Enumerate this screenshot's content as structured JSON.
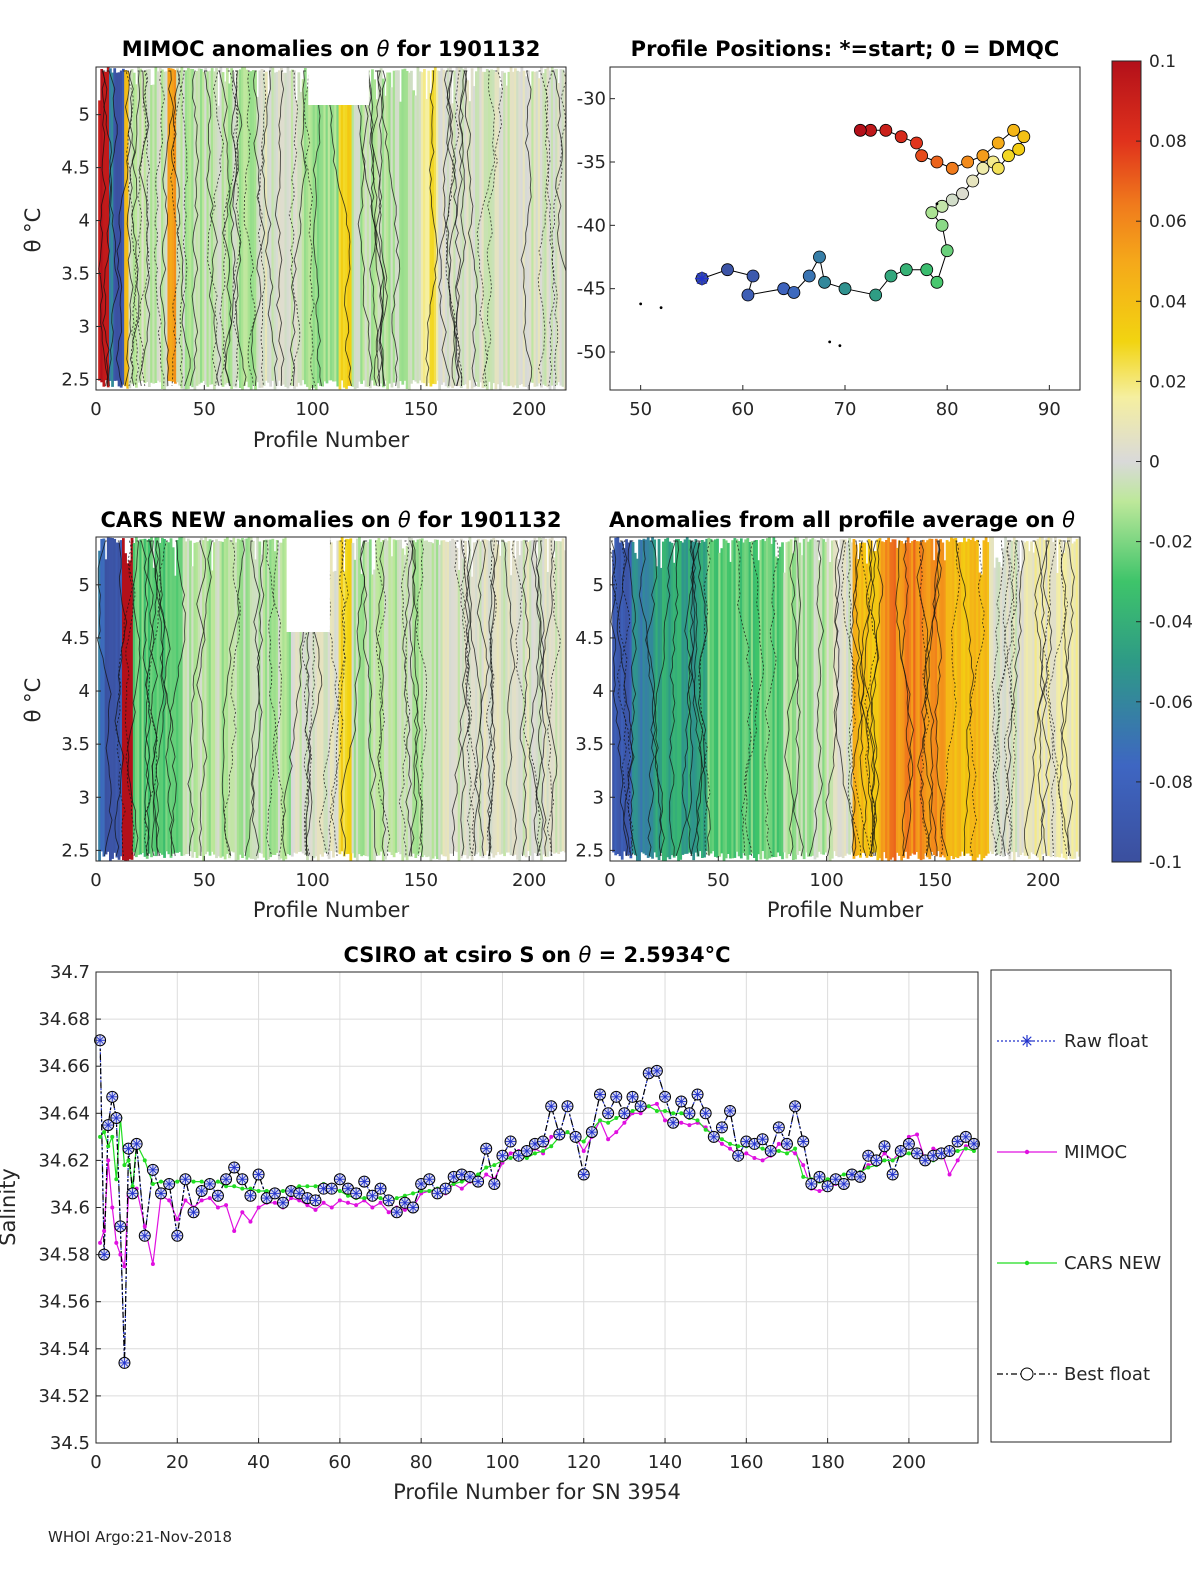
{
  "colors": {
    "raw": "#2233cc",
    "mimoc": "#e010e0",
    "cars": "#22dd22",
    "best": "#000000",
    "frame": "#262626",
    "grid": "#dcdcdc"
  },
  "chart_data": [
    {
      "type": "heatmap",
      "title_prefix": "MIMOC anomalies on ",
      "title_symbol": "θ",
      "title_suffix": "  for 1901132",
      "xlabel": "Profile Number",
      "ylabel": "θ °C",
      "xlim": [
        0,
        217
      ],
      "ylim": [
        2.4,
        5.45
      ],
      "xticks": [
        "0",
        "50",
        "100",
        "150",
        "200"
      ],
      "yticks": [
        "2.5",
        "3",
        "3.5",
        "4",
        "4.5",
        "5"
      ],
      "bands": [
        {
          "x0": 1,
          "x1": 6,
          "value": 0.1
        },
        {
          "x0": 6,
          "x1": 8,
          "value": -0.06
        },
        {
          "x0": 8,
          "x1": 13,
          "value": -0.09
        },
        {
          "x0": 13,
          "x1": 15,
          "value": 0.04
        },
        {
          "x0": 15,
          "x1": 33,
          "value": -0.005
        },
        {
          "x0": 33,
          "x1": 37,
          "value": 0.05
        },
        {
          "x0": 37,
          "x1": 75,
          "value": -0.008
        },
        {
          "x0": 75,
          "x1": 95,
          "value": 0.0
        },
        {
          "x0": 95,
          "x1": 112,
          "value": -0.015
        },
        {
          "x0": 112,
          "x1": 118,
          "value": 0.03
        },
        {
          "x0": 118,
          "x1": 150,
          "value": -0.01
        },
        {
          "x0": 150,
          "x1": 158,
          "value": 0.02
        },
        {
          "x0": 158,
          "x1": 217,
          "value": 0.0
        }
      ]
    },
    {
      "type": "scatter",
      "title": "Profile Positions: *=start; 0 = DMQC",
      "xlim": [
        47,
        93
      ],
      "ylim": [
        -53,
        -27.5
      ],
      "xticks": [
        "50",
        "60",
        "70",
        "80",
        "90"
      ],
      "yticks": [
        "-30",
        "-35",
        "-40",
        "-45",
        "-50"
      ],
      "start": [
        56,
        -44.2
      ],
      "track": [
        [
          56,
          -44.2
        ],
        [
          58.5,
          -43.5
        ],
        [
          61,
          -44
        ],
        [
          60.5,
          -45.5
        ],
        [
          64,
          -45
        ],
        [
          65,
          -45.3
        ],
        [
          66.5,
          -44
        ],
        [
          67.5,
          -42.5
        ],
        [
          68,
          -44.5
        ],
        [
          70,
          -45
        ],
        [
          73,
          -45.5
        ],
        [
          74.5,
          -44
        ],
        [
          76,
          -43.5
        ],
        [
          78,
          -43.5
        ],
        [
          79,
          -44.5
        ],
        [
          80,
          -42
        ],
        [
          79.5,
          -40
        ],
        [
          78.5,
          -39
        ],
        [
          79.5,
          -38.5
        ],
        [
          80.5,
          -38
        ],
        [
          81.5,
          -37.5
        ],
        [
          82.5,
          -36.5
        ],
        [
          83.5,
          -35.5
        ],
        [
          84.5,
          -35
        ],
        [
          85,
          -35.5
        ],
        [
          86,
          -34.5
        ],
        [
          87,
          -34
        ],
        [
          87.5,
          -33
        ],
        [
          86.5,
          -32.5
        ],
        [
          85,
          -33.5
        ],
        [
          83.5,
          -34.5
        ],
        [
          82,
          -35
        ],
        [
          80.5,
          -35.5
        ],
        [
          79,
          -35
        ],
        [
          77.5,
          -34.5
        ],
        [
          77,
          -33.5
        ],
        [
          75.5,
          -33
        ],
        [
          74,
          -32.5
        ],
        [
          72.5,
          -32.5
        ],
        [
          71.5,
          -32.5
        ]
      ]
    },
    {
      "type": "heatmap",
      "title_prefix": "CARS NEW anomalies on ",
      "title_symbol": "θ",
      "title_suffix": " for 1901132",
      "xlabel": "Profile Number",
      "ylabel": "θ °C",
      "xlim": [
        0,
        217
      ],
      "ylim": [
        2.4,
        5.45
      ],
      "xticks": [
        "0",
        "50",
        "100",
        "150",
        "200"
      ],
      "yticks": [
        "2.5",
        "3",
        "3.5",
        "4",
        "4.5",
        "5"
      ],
      "bands": [
        {
          "x0": 1,
          "x1": 4,
          "value": -0.07
        },
        {
          "x0": 4,
          "x1": 12,
          "value": -0.09
        },
        {
          "x0": 12,
          "x1": 17,
          "value": 0.1
        },
        {
          "x0": 17,
          "x1": 40,
          "value": -0.025
        },
        {
          "x0": 40,
          "x1": 90,
          "value": -0.01
        },
        {
          "x0": 90,
          "x1": 112,
          "value": 0.0
        },
        {
          "x0": 112,
          "x1": 118,
          "value": 0.03
        },
        {
          "x0": 118,
          "x1": 160,
          "value": -0.01
        },
        {
          "x0": 160,
          "x1": 217,
          "value": 0.0
        }
      ]
    },
    {
      "type": "heatmap",
      "title_prefix": "Anomalies from all profile average on ",
      "title_symbol": "θ",
      "title_suffix": "",
      "xlabel": "Profile Number",
      "ylabel": "θ °C",
      "xlim": [
        0,
        217
      ],
      "ylim": [
        2.4,
        5.45
      ],
      "xticks": [
        "0",
        "50",
        "100",
        "150",
        "200"
      ],
      "yticks": [
        "2.5",
        "3",
        "3.5",
        "4",
        "4.5",
        "5"
      ],
      "bands": [
        {
          "x0": 1,
          "x1": 10,
          "value": -0.09
        },
        {
          "x0": 10,
          "x1": 20,
          "value": -0.06
        },
        {
          "x0": 20,
          "x1": 45,
          "value": -0.045
        },
        {
          "x0": 45,
          "x1": 80,
          "value": -0.025
        },
        {
          "x0": 80,
          "x1": 100,
          "value": -0.01
        },
        {
          "x0": 100,
          "x1": 112,
          "value": 0.0
        },
        {
          "x0": 112,
          "x1": 125,
          "value": 0.04
        },
        {
          "x0": 125,
          "x1": 155,
          "value": 0.06
        },
        {
          "x0": 155,
          "x1": 175,
          "value": 0.04
        },
        {
          "x0": 175,
          "x1": 190,
          "value": 0.0
        },
        {
          "x0": 190,
          "x1": 217,
          "value": 0.01
        }
      ]
    },
    {
      "type": "line",
      "title_prefix": "CSIRO at csiro S on ",
      "title_symbol": "θ",
      "title_value": " = 2.5934",
      "title_unit": "°C",
      "xlabel": "Profile Number for SN 3954",
      "ylabel": "Salinity",
      "xlim": [
        0,
        217
      ],
      "ylim": [
        34.5,
        34.7
      ],
      "xticks": [
        "0",
        "20",
        "40",
        "60",
        "80",
        "100",
        "120",
        "140",
        "160",
        "180",
        "200"
      ],
      "yticks": [
        "34.5",
        "34.52",
        "34.54",
        "34.56",
        "34.58",
        "34.6",
        "34.62",
        "34.64",
        "34.66",
        "34.68",
        "34.7"
      ],
      "x": [
        1,
        2,
        3,
        4,
        5,
        6,
        7,
        8,
        9,
        10,
        12,
        14,
        16,
        18,
        20,
        22,
        24,
        26,
        28,
        30,
        32,
        34,
        36,
        38,
        40,
        42,
        44,
        46,
        48,
        50,
        52,
        54,
        56,
        58,
        60,
        62,
        64,
        66,
        68,
        70,
        72,
        74,
        76,
        78,
        80,
        82,
        84,
        86,
        88,
        90,
        92,
        94,
        96,
        98,
        100,
        102,
        104,
        106,
        108,
        110,
        112,
        114,
        116,
        118,
        120,
        122,
        124,
        126,
        128,
        130,
        132,
        134,
        136,
        138,
        140,
        142,
        144,
        146,
        148,
        150,
        152,
        154,
        156,
        158,
        160,
        162,
        164,
        166,
        168,
        170,
        172,
        174,
        176,
        178,
        180,
        182,
        184,
        186,
        188,
        190,
        192,
        194,
        196,
        198,
        200,
        202,
        204,
        206,
        208,
        210,
        212,
        214,
        216
      ],
      "series": [
        {
          "name": "Raw float",
          "values": [
            34.671,
            34.58,
            34.635,
            34.647,
            34.638,
            34.592,
            34.534,
            34.625,
            34.606,
            34.627,
            34.588,
            34.616,
            34.606,
            34.61,
            34.588,
            34.612,
            34.598,
            34.607,
            34.61,
            34.605,
            34.612,
            34.617,
            34.612,
            34.605,
            34.614,
            34.604,
            34.606,
            34.602,
            34.607,
            34.606,
            34.604,
            34.603,
            34.608,
            34.608,
            34.612,
            34.608,
            34.606,
            34.611,
            34.605,
            34.608,
            34.603,
            34.598,
            34.602,
            34.6,
            34.61,
            34.612,
            34.606,
            34.608,
            34.613,
            34.614,
            34.613,
            34.611,
            34.625,
            34.61,
            34.622,
            34.628,
            34.622,
            34.624,
            34.627,
            34.628,
            34.643,
            34.631,
            34.643,
            34.63,
            34.614,
            34.632,
            34.648,
            34.64,
            34.647,
            34.64,
            34.647,
            34.643,
            34.657,
            34.658,
            34.647,
            34.636,
            34.645,
            34.64,
            34.648,
            34.64,
            34.63,
            34.634,
            34.641,
            34.622,
            34.628,
            34.627,
            34.629,
            34.624,
            34.634,
            34.627,
            34.643,
            34.628,
            34.61,
            34.613,
            34.609,
            34.612,
            34.61,
            34.614,
            34.613,
            34.622,
            34.62,
            34.626,
            34.614,
            34.624,
            34.627,
            34.623,
            34.62,
            34.622,
            34.623,
            34.624,
            34.628,
            34.63,
            34.627
          ]
        },
        {
          "name": "MIMOC",
          "values": [
            34.585,
            34.59,
            34.62,
            34.6,
            34.585,
            34.58,
            34.575,
            34.605,
            34.607,
            34.608,
            34.592,
            34.576,
            34.605,
            34.603,
            34.595,
            34.603,
            34.6,
            34.603,
            34.604,
            34.6,
            34.601,
            34.59,
            34.598,
            34.594,
            34.6,
            34.602,
            34.602,
            34.6,
            34.604,
            34.603,
            34.601,
            34.599,
            34.602,
            34.6,
            34.603,
            34.602,
            34.601,
            34.603,
            34.6,
            34.602,
            34.598,
            34.6,
            34.599,
            34.6,
            34.606,
            34.607,
            34.606,
            34.606,
            34.61,
            34.608,
            34.611,
            34.61,
            34.614,
            34.612,
            34.619,
            34.623,
            34.624,
            34.622,
            34.625,
            34.623,
            34.63,
            34.631,
            34.632,
            34.63,
            34.624,
            34.63,
            34.637,
            34.629,
            34.632,
            34.636,
            34.64,
            34.64,
            34.643,
            34.644,
            34.637,
            34.637,
            34.636,
            34.635,
            34.636,
            34.634,
            34.63,
            34.627,
            34.625,
            34.622,
            34.623,
            34.621,
            34.62,
            34.622,
            34.627,
            34.625,
            34.623,
            34.618,
            34.608,
            34.607,
            34.608,
            34.61,
            34.61,
            34.614,
            34.615,
            34.618,
            34.619,
            34.623,
            34.62,
            34.624,
            34.63,
            34.631,
            34.62,
            34.625,
            34.624,
            34.614,
            34.62,
            34.626,
            34.627
          ]
        },
        {
          "name": "CARS NEW",
          "values": [
            34.63,
            34.632,
            34.626,
            34.63,
            34.612,
            34.638,
            34.618,
            34.62,
            34.609,
            34.627,
            34.62,
            34.61,
            34.611,
            34.611,
            34.611,
            34.612,
            34.611,
            34.611,
            34.61,
            34.611,
            34.609,
            34.609,
            34.608,
            34.608,
            34.607,
            34.607,
            34.607,
            34.607,
            34.608,
            34.609,
            34.609,
            34.609,
            34.61,
            34.608,
            34.607,
            34.605,
            34.604,
            34.604,
            34.604,
            34.604,
            34.603,
            34.604,
            34.605,
            34.606,
            34.607,
            34.607,
            34.608,
            34.609,
            34.61,
            34.611,
            34.612,
            34.614,
            34.617,
            34.618,
            34.62,
            34.621,
            34.622,
            34.621,
            34.623,
            34.624,
            34.626,
            34.63,
            34.632,
            34.629,
            34.628,
            34.633,
            34.637,
            34.636,
            34.638,
            34.64,
            34.641,
            34.642,
            34.643,
            34.641,
            34.641,
            34.64,
            34.64,
            34.638,
            34.637,
            34.633,
            34.631,
            34.629,
            34.627,
            34.626,
            34.626,
            34.626,
            34.625,
            34.624,
            34.624,
            34.623,
            34.625,
            34.613,
            34.612,
            34.611,
            34.612,
            34.613,
            34.614,
            34.615,
            34.615,
            34.617,
            34.618,
            34.62,
            34.62,
            34.622,
            34.623,
            34.622,
            34.621,
            34.62,
            34.622,
            34.623,
            34.624,
            34.625,
            34.624
          ]
        },
        {
          "name": "Best float",
          "values": [
            34.671,
            34.58,
            34.635,
            34.647,
            34.638,
            34.592,
            34.534,
            34.625,
            34.606,
            34.627,
            34.588,
            34.616,
            34.606,
            34.61,
            34.588,
            34.612,
            34.598,
            34.607,
            34.61,
            34.605,
            34.612,
            34.617,
            34.612,
            34.605,
            34.614,
            34.604,
            34.606,
            34.602,
            34.607,
            34.606,
            34.604,
            34.603,
            34.608,
            34.608,
            34.612,
            34.608,
            34.606,
            34.611,
            34.605,
            34.608,
            34.603,
            34.598,
            34.602,
            34.6,
            34.61,
            34.612,
            34.606,
            34.608,
            34.613,
            34.614,
            34.613,
            34.611,
            34.625,
            34.61,
            34.622,
            34.628,
            34.622,
            34.624,
            34.627,
            34.628,
            34.643,
            34.631,
            34.643,
            34.63,
            34.614,
            34.632,
            34.648,
            34.64,
            34.647,
            34.64,
            34.647,
            34.643,
            34.657,
            34.658,
            34.647,
            34.636,
            34.645,
            34.64,
            34.648,
            34.64,
            34.63,
            34.634,
            34.641,
            34.622,
            34.628,
            34.627,
            34.629,
            34.624,
            34.634,
            34.627,
            34.643,
            34.628,
            34.61,
            34.613,
            34.609,
            34.612,
            34.61,
            34.614,
            34.613,
            34.622,
            34.62,
            34.626,
            34.614,
            34.624,
            34.627,
            34.623,
            34.62,
            34.622,
            34.623,
            34.624,
            34.628,
            34.63,
            34.627
          ]
        }
      ],
      "legend": [
        "Raw float",
        "MIMOC",
        "CARS NEW",
        "Best float"
      ]
    }
  ],
  "colorbar": {
    "range": [
      -0.1,
      0.1
    ],
    "ticks": [
      "0.1",
      "0.08",
      "0.06",
      "0.04",
      "0.02",
      "0",
      "-0.02",
      "-0.04",
      "-0.06",
      "-0.08",
      "-0.1"
    ]
  },
  "footer": "WHOI Argo:21-Nov-2018"
}
